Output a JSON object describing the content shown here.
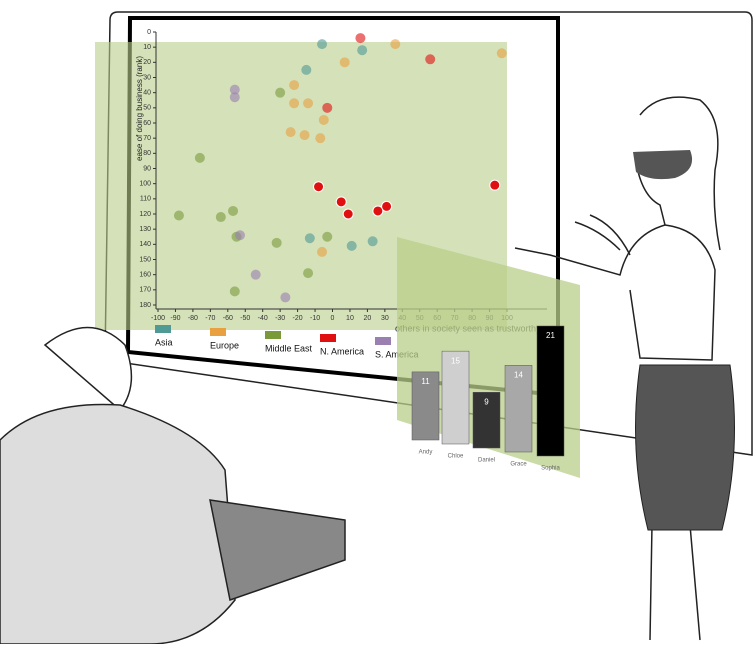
{
  "chart_data": [
    {
      "type": "scatter",
      "y_label": "ease of doing business (rank)",
      "x_label": "others in society seen as trustworthy",
      "xlim": [
        -100,
        100
      ],
      "ylim": [
        0,
        180
      ],
      "xticks": [
        -100,
        -90,
        -80,
        -70,
        -60,
        -50,
        -40,
        -30,
        -20,
        -10,
        0,
        10,
        20,
        30,
        40,
        50,
        60,
        70,
        80,
        90,
        100
      ],
      "yticks": [
        0,
        10,
        20,
        30,
        40,
        50,
        60,
        70,
        80,
        90,
        100,
        110,
        120,
        130,
        140,
        150,
        160,
        170,
        180
      ],
      "y_inverted": true,
      "series": [
        {
          "name": "Asia",
          "color": "#4f9a94",
          "x": [
            -6,
            17,
            -15,
            -13,
            11,
            23
          ],
          "values": [
            8,
            12,
            25,
            136,
            141,
            138
          ]
        },
        {
          "name": "Europe",
          "color": "#e8a040",
          "x": [
            36,
            97,
            7,
            -22,
            -22,
            -14,
            -5,
            -24,
            -16,
            -7,
            -6
          ],
          "values": [
            8,
            14,
            20,
            35,
            47,
            47,
            58,
            66,
            68,
            70,
            145
          ]
        },
        {
          "name": "Middle East",
          "color": "#7a9a3a",
          "x": [
            -30,
            -76,
            -57,
            -88,
            -64,
            -55,
            -32,
            -3,
            -14,
            -56
          ],
          "values": [
            40,
            83,
            118,
            121,
            122,
            135,
            139,
            135,
            159,
            171
          ]
        },
        {
          "name": "N. America",
          "color": "#e01010",
          "x": [
            16,
            56,
            -3,
            -8,
            5,
            9,
            26,
            31,
            93
          ],
          "values": [
            4,
            18,
            50,
            102,
            112,
            120,
            118,
            115,
            101
          ]
        },
        {
          "name": "S. America",
          "color": "#9a80b0",
          "x": [
            -56,
            -56,
            -53,
            -44,
            -27
          ],
          "values": [
            38,
            43,
            134,
            160,
            175
          ]
        }
      ]
    },
    {
      "type": "bar",
      "categories": [
        "Andy",
        "Chloe",
        "Daniel",
        "Grace",
        "Sophia"
      ],
      "values": [
        11,
        15,
        9,
        14,
        21
      ],
      "colors": [
        "#8a8a8a",
        "#cfcfcf",
        "#333333",
        "#a8a8a8",
        "#000000"
      ]
    }
  ]
}
